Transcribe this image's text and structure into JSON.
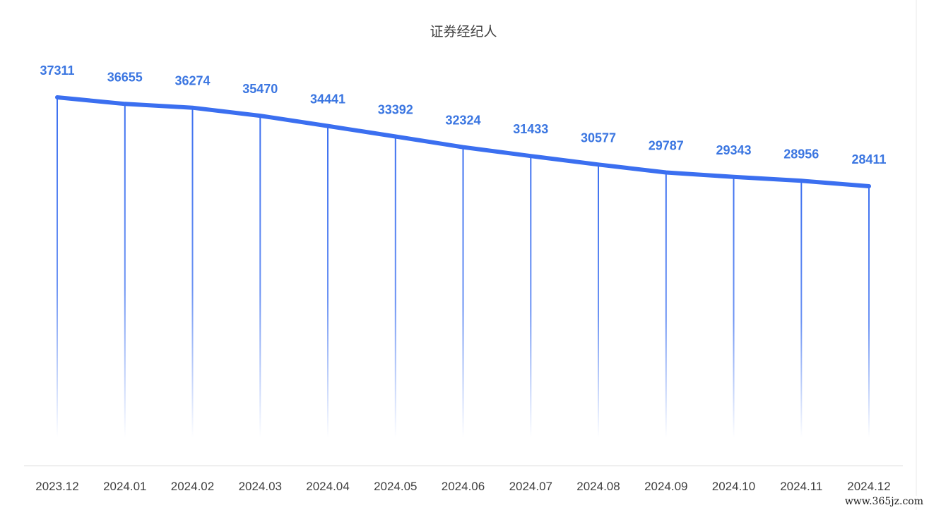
{
  "chart_data": {
    "type": "line",
    "title": "证券经纪人",
    "xlabel": "",
    "ylabel": "",
    "categories": [
      "2023.12",
      "2024.01",
      "2024.02",
      "2024.03",
      "2024.04",
      "2024.05",
      "2024.06",
      "2024.07",
      "2024.08",
      "2024.09",
      "2024.10",
      "2024.11",
      "2024.12"
    ],
    "series": [
      {
        "name": "证券经纪人",
        "values": [
          37311,
          36655,
          36274,
          35470,
          34441,
          33392,
          32324,
          31433,
          30577,
          29787,
          29343,
          28956,
          28411
        ],
        "color": "#3b6ff0"
      }
    ],
    "grid": false,
    "legend": "none",
    "line_color": "#3b6ff0",
    "label_color": "#3b76e1",
    "drop_line_color": "#3b6ff0"
  },
  "watermark": "www.365jz.com"
}
